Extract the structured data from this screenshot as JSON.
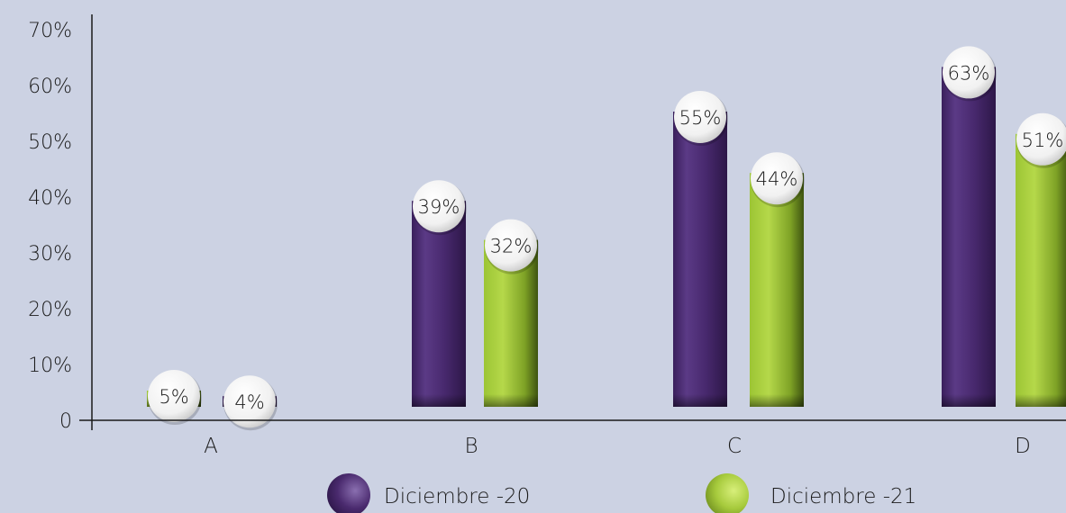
{
  "chart_data": {
    "type": "bar",
    "categories": [
      "A",
      "B",
      "C",
      "D"
    ],
    "series": [
      {
        "name": "Diciembre -20",
        "values": [
          5,
          39,
          55,
          63
        ],
        "labels": [
          "5%",
          "39%",
          "55%",
          "63%"
        ]
      },
      {
        "name": "Diciembre -21",
        "values": [
          4,
          32,
          44,
          51
        ],
        "labels": [
          "4%",
          "32%",
          "44%",
          "51%"
        ]
      }
    ],
    "yticks": [
      "0",
      "10%",
      "20%",
      "30%",
      "40%",
      "50%",
      "60%",
      "70%"
    ],
    "ylim": [
      0,
      70
    ],
    "legend_position": "bottom",
    "colors": {
      "series_1": "#4a2a6e",
      "series_2": "#a6ca3c",
      "background": "#ccd2e3",
      "axis": "#1a1a1a"
    }
  }
}
